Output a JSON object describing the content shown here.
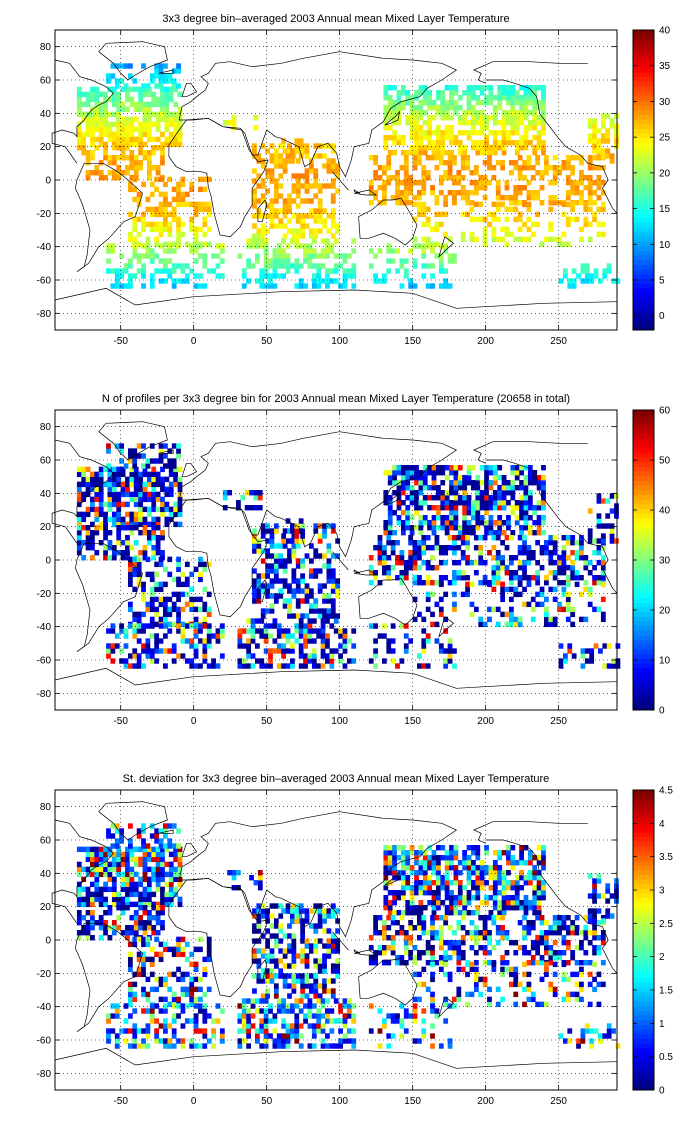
{
  "chart_data": [
    {
      "type": "heatmap",
      "title": "3x3 degree bin–averaged 2003 Annual mean Mixed Layer Temperature",
      "xlabel": "",
      "ylabel": "",
      "xlim": [
        -95,
        290
      ],
      "ylim": [
        -90,
        90
      ],
      "xticks": [
        -50,
        0,
        50,
        100,
        150,
        200,
        250
      ],
      "yticks": [
        80,
        60,
        40,
        20,
        0,
        -20,
        -40,
        -60,
        -80
      ],
      "grid": true,
      "colorbar": {
        "min": -2,
        "max": 40,
        "ticks": [
          0,
          5,
          10,
          15,
          20,
          25,
          30,
          35,
          40
        ],
        "colormap": "jet"
      },
      "bin_size_deg": 3
    },
    {
      "type": "heatmap",
      "title": "N of profiles per 3x3 degree bin for 2003 Annual mean Mixed Layer Temperature  (20658 in total)",
      "xlabel": "",
      "ylabel": "",
      "xlim": [
        -95,
        290
      ],
      "ylim": [
        -90,
        90
      ],
      "xticks": [
        -50,
        0,
        50,
        100,
        150,
        200,
        250
      ],
      "yticks": [
        80,
        60,
        40,
        20,
        0,
        -20,
        -40,
        -60,
        -80
      ],
      "grid": true,
      "colorbar": {
        "min": 0,
        "max": 60,
        "ticks": [
          0,
          10,
          20,
          30,
          40,
          50,
          60
        ],
        "colormap": "jet"
      },
      "total_profiles": 20658,
      "bin_size_deg": 3
    },
    {
      "type": "heatmap",
      "title": "St. deviation for 3x3 degree bin–averaged 2003 Annual mean Mixed Layer Temperature",
      "xlabel": "",
      "ylabel": "",
      "xlim": [
        -95,
        290
      ],
      "ylim": [
        -90,
        90
      ],
      "xticks": [
        -50,
        0,
        50,
        100,
        150,
        200,
        250
      ],
      "yticks": [
        80,
        60,
        40,
        20,
        0,
        -20,
        -40,
        -60,
        -80
      ],
      "grid": true,
      "colorbar": {
        "min": 0,
        "max": 4.5,
        "ticks": [
          0,
          0.5,
          1,
          1.5,
          2,
          2.5,
          3,
          3.5,
          4,
          4.5
        ],
        "colormap": "jet"
      },
      "bin_size_deg": 3
    }
  ]
}
